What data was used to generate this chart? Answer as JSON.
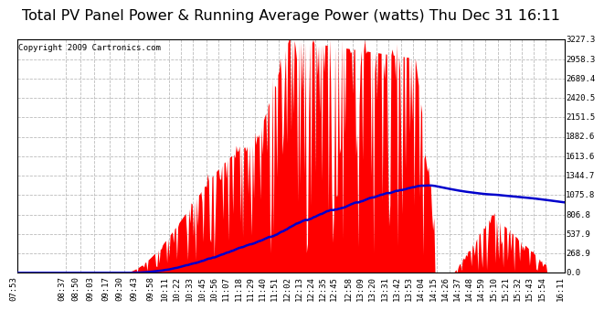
{
  "title": "Total PV Panel Power & Running Average Power (watts) Thu Dec 31 16:11",
  "copyright": "Copyright 2009 Cartronics.com",
  "background_color": "#ffffff",
  "plot_bg_color": "#ffffff",
  "grid_color": "#bbbbbb",
  "bar_color": "#ff0000",
  "line_color": "#0000cc",
  "yticks": [
    0.0,
    268.9,
    537.9,
    806.8,
    1075.8,
    1344.7,
    1613.6,
    1882.6,
    2151.5,
    2420.5,
    2689.4,
    2958.3,
    3227.3
  ],
  "ymax": 3227.3,
  "ymin": 0.0,
  "title_fontsize": 11.5,
  "copyright_fontsize": 6.5,
  "tick_fontsize": 6.5,
  "xtick_labels": [
    "07:53",
    "08:37",
    "08:50",
    "09:03",
    "09:17",
    "09:30",
    "09:43",
    "09:58",
    "10:11",
    "10:22",
    "10:33",
    "10:45",
    "10:56",
    "11:07",
    "11:18",
    "11:29",
    "11:40",
    "11:51",
    "12:02",
    "12:13",
    "12:24",
    "12:35",
    "12:45",
    "12:58",
    "13:09",
    "13:20",
    "13:31",
    "13:42",
    "13:53",
    "14:04",
    "14:15",
    "14:26",
    "14:37",
    "14:48",
    "14:59",
    "15:10",
    "15:21",
    "15:32",
    "15:43",
    "15:54",
    "16:11"
  ]
}
